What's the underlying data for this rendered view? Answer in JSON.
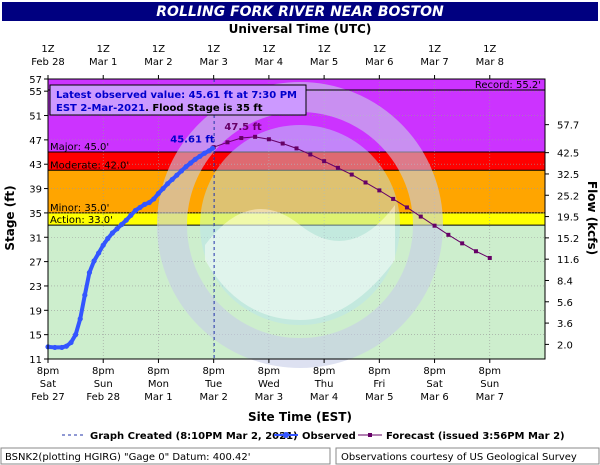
{
  "chart_data": {
    "type": "line",
    "title": "ROLLING FORK RIVER NEAR BOSTON",
    "top_axis_label": "Universal Time (UTC)",
    "xlabel": "Site Time (EST)",
    "ylabel": "Stage (ft)",
    "y2label": "Flow (kcfs)",
    "ylim": [
      11,
      57
    ],
    "y_ticks": [
      11,
      15,
      19,
      23,
      27,
      31,
      35,
      39,
      43,
      47,
      51,
      55,
      57
    ],
    "y2_ticks": [
      {
        "stage": 13.4,
        "label": "2.0"
      },
      {
        "stage": 16.9,
        "label": "3.6"
      },
      {
        "stage": 20.4,
        "label": "5.6"
      },
      {
        "stage": 23.9,
        "label": "8.4"
      },
      {
        "stage": 27.4,
        "label": "11.6"
      },
      {
        "stage": 30.9,
        "label": "15.2"
      },
      {
        "stage": 34.4,
        "label": "19.5"
      },
      {
        "stage": 37.9,
        "label": "25.2"
      },
      {
        "stage": 41.4,
        "label": "32.5"
      },
      {
        "stage": 44.9,
        "label": "42.5"
      },
      {
        "stage": 49.5,
        "label": "57.7"
      }
    ],
    "xlim_hours": [
      0,
      216
    ],
    "bottom_ticks": [
      {
        "hour": 0,
        "time": "8pm",
        "day": "Sat",
        "date": "Feb 27"
      },
      {
        "hour": 24,
        "time": "8pm",
        "day": "Sun",
        "date": "Feb 28"
      },
      {
        "hour": 48,
        "time": "8pm",
        "day": "Mon",
        "date": "Mar 1"
      },
      {
        "hour": 72,
        "time": "8pm",
        "day": "Tue",
        "date": "Mar 2"
      },
      {
        "hour": 96,
        "time": "8pm",
        "day": "Wed",
        "date": "Mar 3"
      },
      {
        "hour": 120,
        "time": "8pm",
        "day": "Thu",
        "date": "Mar 4"
      },
      {
        "hour": 144,
        "time": "8pm",
        "day": "Fri",
        "date": "Mar 5"
      },
      {
        "hour": 168,
        "time": "8pm",
        "day": "Sat",
        "date": "Mar 6"
      },
      {
        "hour": 192,
        "time": "8pm",
        "day": "Sun",
        "date": "Mar 7"
      }
    ],
    "top_ticks": [
      {
        "hour": 0,
        "time": "1Z",
        "date": "Feb 28"
      },
      {
        "hour": 24,
        "time": "1Z",
        "date": "Mar 1"
      },
      {
        "hour": 48,
        "time": "1Z",
        "date": "Mar 2"
      },
      {
        "hour": 72,
        "time": "1Z",
        "date": "Mar 3"
      },
      {
        "hour": 96,
        "time": "1Z",
        "date": "Mar 4"
      },
      {
        "hour": 120,
        "time": "1Z",
        "date": "Mar 5"
      },
      {
        "hour": 144,
        "time": "1Z",
        "date": "Mar 6"
      },
      {
        "hour": 168,
        "time": "1Z",
        "date": "Mar 7"
      },
      {
        "hour": 192,
        "time": "1Z",
        "date": "Mar 8"
      }
    ],
    "flood_categories": [
      {
        "name": "Action",
        "label": "Action: 33.0'",
        "from": 33.0,
        "to": 35.0,
        "color": "#ffff00"
      },
      {
        "name": "Minor",
        "label": "Minor: 35.0'",
        "from": 35.0,
        "to": 42.0,
        "color": "#ffa500"
      },
      {
        "name": "Moderate",
        "label": "Moderate: 42.0'",
        "from": 42.0,
        "to": 45.0,
        "color": "#ff0000"
      },
      {
        "name": "Major",
        "label": "Major: 45.0'",
        "from": 45.0,
        "to": 57.0,
        "color": "#cc33ff"
      }
    ],
    "below_action_color": "#cdeecd",
    "record": {
      "label": "Record: 55.2'",
      "value": 55.2
    },
    "graph_created_hour": 72.2,
    "latest_note": {
      "line1": "Latest observed value: 45.61  ft at 7:30 PM",
      "line2_blue": "EST 2-Mar-2021",
      "line2_black": ". Flood Stage is 35 ft"
    },
    "observed_label": "45.61 ft",
    "forecast_label": "47.5 ft",
    "series": [
      {
        "name": "Observed",
        "color": "#3355ff",
        "points": [
          [
            0,
            13.0
          ],
          [
            3,
            12.9
          ],
          [
            6,
            12.9
          ],
          [
            8,
            13.1
          ],
          [
            10,
            13.7
          ],
          [
            12,
            15.0
          ],
          [
            14,
            17.6
          ],
          [
            16,
            21.5
          ],
          [
            18,
            25.2
          ],
          [
            20,
            27.1
          ],
          [
            22,
            28.4
          ],
          [
            24,
            29.7
          ],
          [
            26,
            30.8
          ],
          [
            28,
            31.7
          ],
          [
            30,
            32.4
          ],
          [
            32,
            33.1
          ],
          [
            34,
            33.8
          ],
          [
            36,
            34.6
          ],
          [
            38,
            35.4
          ],
          [
            40,
            35.9
          ],
          [
            42,
            36.4
          ],
          [
            44,
            36.7
          ],
          [
            46,
            37.3
          ],
          [
            48,
            38.2
          ],
          [
            50,
            39.0
          ],
          [
            52,
            39.8
          ],
          [
            54,
            40.5
          ],
          [
            56,
            41.2
          ],
          [
            58,
            41.9
          ],
          [
            60,
            42.6
          ],
          [
            62,
            43.2
          ],
          [
            64,
            43.8
          ],
          [
            66,
            44.3
          ],
          [
            68,
            44.8
          ],
          [
            70,
            45.2
          ],
          [
            71.5,
            45.61
          ]
        ]
      },
      {
        "name": "Forecast",
        "color": "#660066",
        "points": [
          [
            72,
            45.8
          ],
          [
            78,
            46.6
          ],
          [
            84,
            47.3
          ],
          [
            90,
            47.5
          ],
          [
            96,
            47.1
          ],
          [
            102,
            46.4
          ],
          [
            108,
            45.6
          ],
          [
            114,
            44.6
          ],
          [
            120,
            43.5
          ],
          [
            126,
            42.4
          ],
          [
            132,
            41.3
          ],
          [
            138,
            40.0
          ],
          [
            144,
            38.7
          ],
          [
            150,
            37.3
          ],
          [
            156,
            35.9
          ],
          [
            162,
            34.4
          ],
          [
            168,
            32.9
          ],
          [
            174,
            31.4
          ],
          [
            180,
            30.0
          ],
          [
            186,
            28.7
          ],
          [
            192,
            27.6
          ]
        ]
      }
    ]
  },
  "legend": {
    "graph_created": "Graph Created (8:10PM Mar 2, 2021)",
    "observed": "Observed",
    "forecast": "Forecast (issued 3:56PM Mar 2)"
  },
  "footer": {
    "left": "BSNK2(plotting HGIRG) \"Gage 0\" Datum: 400.42'",
    "right": "Observations courtesy of US Geological Survey"
  },
  "colors": {
    "title_bar": "#000080",
    "plot_background": "#cdeecd",
    "observed": "#3355ff",
    "forecast": "#660066",
    "note_blue": "#0000cc"
  }
}
